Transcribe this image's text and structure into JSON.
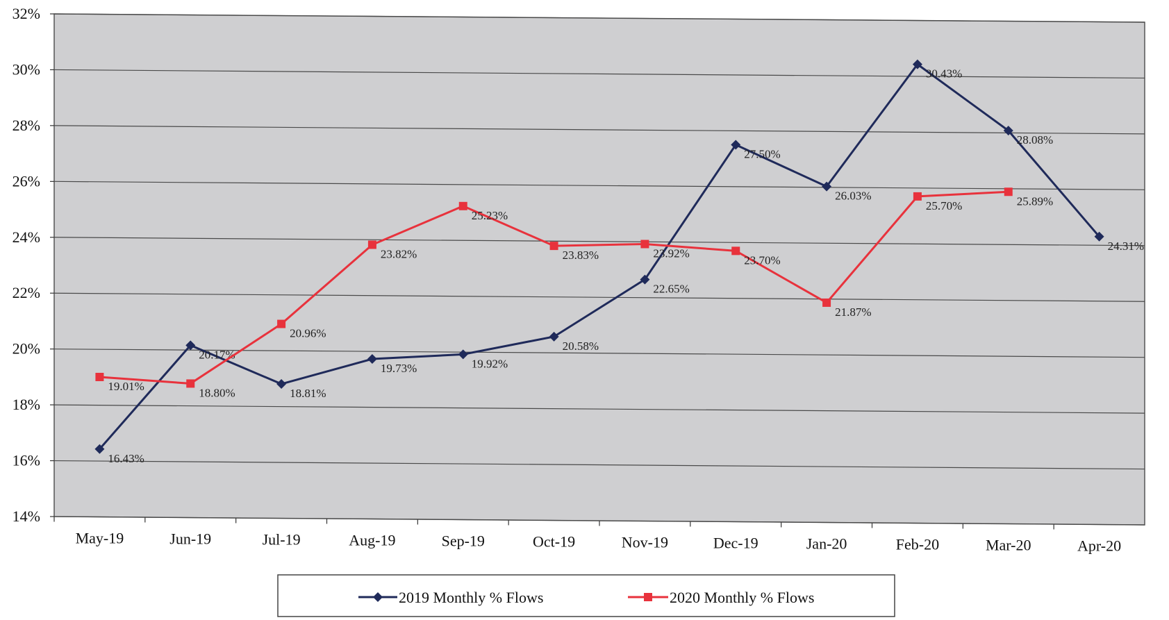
{
  "chart_data": {
    "type": "line",
    "title": "",
    "xlabel": "",
    "ylabel": "",
    "categories": [
      "May-19",
      "Jun-19",
      "Jul-19",
      "Aug-19",
      "Sep-19",
      "Oct-19",
      "Nov-19",
      "Dec-19",
      "Jan-20",
      "Feb-20",
      "Mar-20",
      "Apr-20"
    ],
    "ylim": [
      14,
      32
    ],
    "yticks": [
      14,
      16,
      18,
      20,
      22,
      24,
      26,
      28,
      30,
      32
    ],
    "ytick_labels": [
      "14%",
      "16%",
      "18%",
      "20%",
      "22%",
      "24%",
      "26%",
      "28%",
      "30%",
      "32%"
    ],
    "grid": true,
    "legend_position": "bottom",
    "series": [
      {
        "name": "2019 Monthly % Flows",
        "color": "#1f2a5a",
        "marker": "diamond",
        "values": [
          16.43,
          20.17,
          18.81,
          19.73,
          19.92,
          20.58,
          22.65,
          27.5,
          26.03,
          30.43,
          28.08,
          24.31
        ],
        "labels": [
          "16.43%",
          "20.17%",
          "18.81%",
          "19.73%",
          "19.92%",
          "20.58%",
          "22.65%",
          "27.50%",
          "26.03%",
          "30.43%",
          "28.08%",
          "24.31%"
        ]
      },
      {
        "name": "2020 Monthly % Flows",
        "color": "#e8323c",
        "marker": "square",
        "values": [
          19.01,
          18.8,
          20.96,
          23.82,
          25.23,
          23.83,
          23.92,
          23.7,
          21.87,
          25.7,
          25.89,
          null
        ],
        "labels": [
          "19.01%",
          "18.80%",
          "20.96%",
          "23.82%",
          "25.23%",
          "23.83%",
          "23.92%",
          "23.70%",
          "21.87%",
          "25.70%",
          "25.89%",
          ""
        ]
      }
    ]
  },
  "colors": {
    "plot_background": "#cfcfd1",
    "gridline": "#4a4a4a"
  }
}
